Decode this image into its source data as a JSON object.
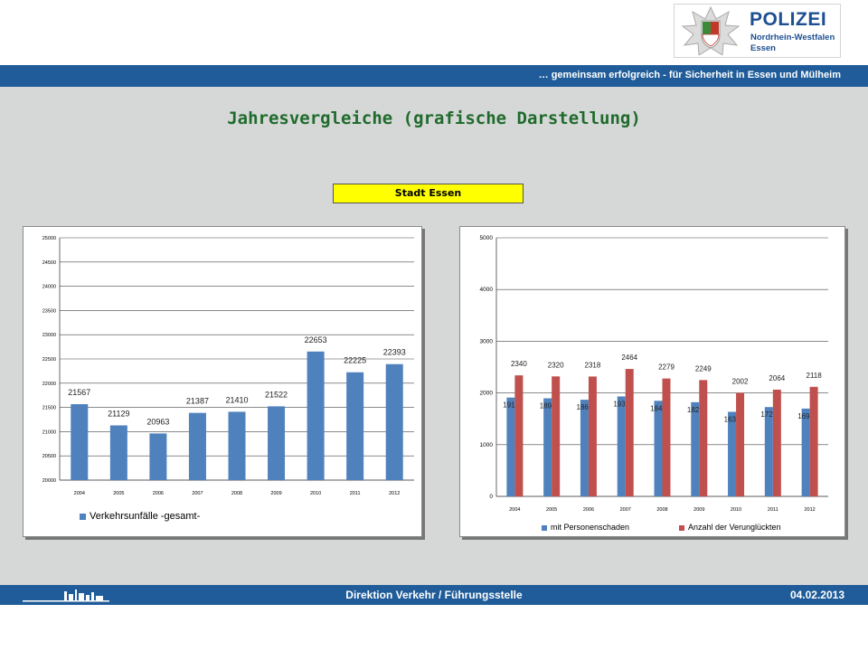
{
  "header": {
    "logo": {
      "title": "POLIZEI",
      "line1": "Nordrhein-Westfalen",
      "line2": "Essen",
      "emblem": "police-star-icon"
    },
    "slogan": "… gemeinsam erfolgreich - für Sicherheit in Essen und Mülheim"
  },
  "page": {
    "title": "Jahresvergleiche (grafische Darstellung)",
    "region": "Stadt Essen"
  },
  "colors": {
    "bar_blue": "#4f81bd",
    "bar_red": "#c0504d",
    "header_blue": "#1f5c99",
    "title_green": "#1f6b2c",
    "region_yellow": "#ffff00",
    "background": "#d6d7d7"
  },
  "chart_data": [
    {
      "type": "bar",
      "categories": [
        "2004",
        "2005",
        "2006",
        "2007",
        "2008",
        "2009",
        "2010",
        "2011",
        "2012"
      ],
      "series": [
        {
          "name": "Verkehrsunfälle -gesamt-",
          "values": [
            21567,
            21129,
            20963,
            21387,
            21410,
            21522,
            22653,
            22225,
            22393
          ],
          "color": "#4f81bd"
        }
      ],
      "ylim": [
        20000,
        25000
      ],
      "yticks": [
        20000,
        20500,
        21000,
        21500,
        22000,
        22500,
        23000,
        23500,
        24000,
        24500,
        25000
      ],
      "yticklabels": [
        "20000",
        "20500",
        "21000",
        "21500",
        "22000",
        "22500",
        "23000",
        "23500",
        "24000",
        "24500",
        "25000"
      ],
      "grid": true,
      "legend": "bottom-left"
    },
    {
      "type": "bar",
      "categories": [
        "2004",
        "2005",
        "2006",
        "2007",
        "2008",
        "2009",
        "2010",
        "2011",
        "2012"
      ],
      "series": [
        {
          "name": "mit Personenschaden",
          "values": [
            1911,
            1896,
            1869,
            1933,
            1848,
            1821,
            1635,
            1727,
            1698
          ],
          "labels": [
            "1911",
            "1896",
            "1869",
            "1933",
            "1848",
            "1821",
            "1635",
            "1727",
            "1698"
          ],
          "color": "#4f81bd"
        },
        {
          "name": "Anzahl der Verunglückten",
          "values": [
            2340,
            2320,
            2318,
            2464,
            2279,
            2249,
            2002,
            2064,
            2118
          ],
          "labels": [
            "2340",
            "2320",
            "2318",
            "2464",
            "2279",
            "2249",
            "2002",
            "2064",
            "2118"
          ],
          "color": "#c0504d"
        }
      ],
      "ylim": [
        0,
        5000
      ],
      "yticks": [
        0,
        1000,
        2000,
        3000,
        4000,
        5000
      ],
      "yticklabels": [
        "0",
        "1000",
        "2000",
        "3000",
        "4000",
        "5000"
      ],
      "grid": true,
      "legend": "bottom"
    }
  ],
  "footer": {
    "center": "Direktion Verkehr / Führungsstelle",
    "date": "04.02.2013",
    "skyline": "city-skyline-icon"
  }
}
